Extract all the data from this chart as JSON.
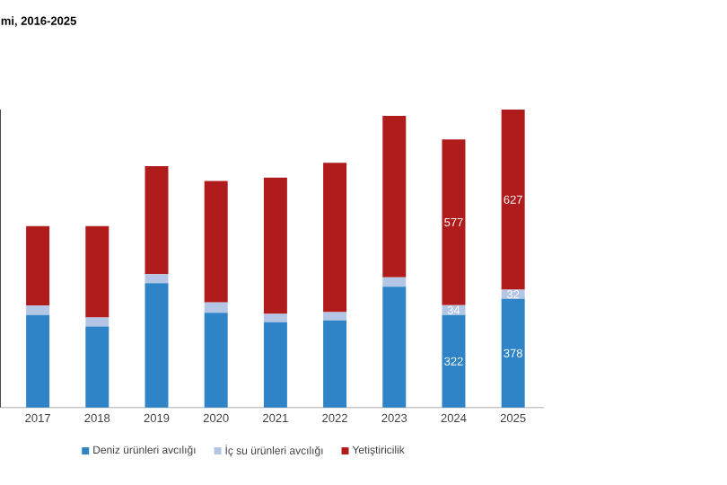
{
  "chart_data": {
    "type": "bar",
    "title": "mi, 2016-2025",
    "stacked": true,
    "legend": "bottom",
    "categories": [
      "2017",
      "2018",
      "2019",
      "2020",
      "2021",
      "2022",
      "2023",
      "2024",
      "2025"
    ],
    "series": [
      {
        "name": "Deniz ürünleri avcılığı",
        "color": "#2e84c6",
        "values": [
          322,
          282,
          433,
          330,
          297,
          303,
          420,
          322,
          378
        ],
        "value_labels": [
          null,
          null,
          null,
          null,
          null,
          null,
          null,
          "322",
          "378"
        ]
      },
      {
        "name": "İç su ürünleri avcılığı",
        "color": "#b4c6e6",
        "values": [
          33,
          31,
          31,
          36,
          29,
          29,
          33,
          34,
          32
        ],
        "value_labels": [
          null,
          null,
          null,
          null,
          null,
          null,
          null,
          "34",
          "32"
        ]
      },
      {
        "name": "Yetiştiricilik",
        "color": "#b01c1c",
        "values": [
          276,
          318,
          376,
          422,
          474,
          520,
          562,
          577,
          627
        ],
        "value_labels": [
          null,
          null,
          null,
          null,
          null,
          null,
          null,
          "577",
          "627"
        ]
      }
    ]
  }
}
